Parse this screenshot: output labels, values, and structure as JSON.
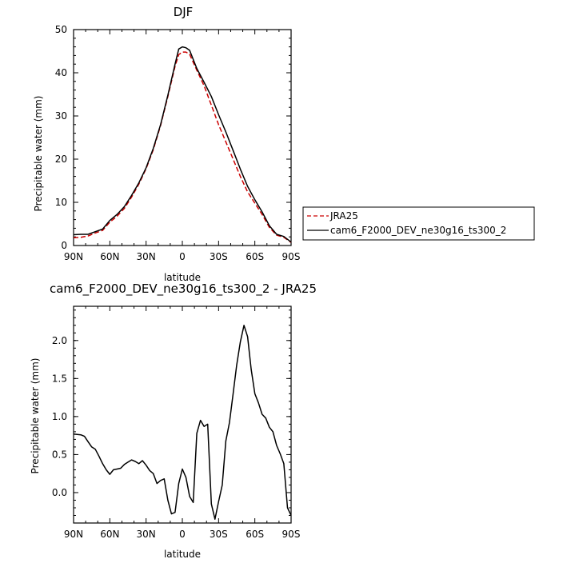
{
  "chart_data": [
    {
      "type": "line",
      "title": "DJF",
      "xlabel": "latitude",
      "ylabel": "Precipitable water (mm)",
      "x_direction": "north-to-south",
      "x_ticks": [
        "90N",
        "60N",
        "30N",
        "0",
        "30S",
        "60S",
        "90S"
      ],
      "y_ticks": [
        "0",
        "10",
        "20",
        "30",
        "40",
        "50"
      ],
      "xlim": [
        90,
        -90
      ],
      "ylim": [
        0,
        50
      ],
      "legend_position": "right",
      "series": [
        {
          "name": "JRA25",
          "color": "#cc0000",
          "dash": "dashed",
          "points": [
            [
              90,
              1.8
            ],
            [
              84,
              1.9
            ],
            [
              78,
              2.2
            ],
            [
              72,
              2.9
            ],
            [
              66,
              3.5
            ],
            [
              60,
              5.4
            ],
            [
              54,
              6.8
            ],
            [
              48,
              8.6
            ],
            [
              42,
              11.2
            ],
            [
              36,
              14.2
            ],
            [
              30,
              17.8
            ],
            [
              24,
              22.2
            ],
            [
              18,
              27.8
            ],
            [
              12,
              34.5
            ],
            [
              6,
              41.5
            ],
            [
              3,
              44.2
            ],
            [
              0,
              44.8
            ],
            [
              -3,
              44.8
            ],
            [
              -6,
              44.3
            ],
            [
              -12,
              40.6
            ],
            [
              -18,
              37.0
            ],
            [
              -24,
              32.5
            ],
            [
              -30,
              28.0
            ],
            [
              -36,
              24.0
            ],
            [
              -42,
              20.0
            ],
            [
              -48,
              16.0
            ],
            [
              -54,
              12.4
            ],
            [
              -60,
              9.8
            ],
            [
              -66,
              7.2
            ],
            [
              -72,
              4.2
            ],
            [
              -78,
              2.4
            ],
            [
              -84,
              1.9
            ],
            [
              -90,
              0.7
            ]
          ]
        },
        {
          "name": "cam6_F2000_DEV_ne30g16_ts300_2",
          "color": "#000000",
          "dash": "solid",
          "points": [
            [
              90,
              2.5
            ],
            [
              84,
              2.6
            ],
            [
              78,
              2.6
            ],
            [
              72,
              3.2
            ],
            [
              66,
              3.8
            ],
            [
              60,
              5.8
            ],
            [
              54,
              7.2
            ],
            [
              48,
              9.0
            ],
            [
              42,
              11.6
            ],
            [
              36,
              14.5
            ],
            [
              30,
              18.0
            ],
            [
              24,
              22.5
            ],
            [
              18,
              28.0
            ],
            [
              12,
              34.8
            ],
            [
              6,
              42.0
            ],
            [
              3,
              45.5
            ],
            [
              0,
              46.0
            ],
            [
              -3,
              45.8
            ],
            [
              -6,
              45.2
            ],
            [
              -12,
              41.0
            ],
            [
              -18,
              37.8
            ],
            [
              -24,
              34.5
            ],
            [
              -30,
              30.3
            ],
            [
              -36,
              26.3
            ],
            [
              -42,
              22.0
            ],
            [
              -48,
              17.7
            ],
            [
              -54,
              13.7
            ],
            [
              -60,
              10.6
            ],
            [
              -66,
              7.8
            ],
            [
              -72,
              4.6
            ],
            [
              -78,
              2.6
            ],
            [
              -84,
              2.1
            ],
            [
              -90,
              0.8
            ]
          ]
        }
      ]
    },
    {
      "type": "line",
      "title": "cam6_F2000_DEV_ne30g16_ts300_2 - JRA25",
      "xlabel": "latitude",
      "ylabel": "Precipitable water (mm)",
      "x_direction": "north-to-south",
      "x_ticks": [
        "90N",
        "60N",
        "30N",
        "0",
        "30S",
        "60S",
        "90S"
      ],
      "y_ticks": [
        "0.0",
        "0.5",
        "1.0",
        "1.5",
        "2.0"
      ],
      "y_tick_values": [
        0,
        0.5,
        1.0,
        1.5,
        2.0
      ],
      "xlim": [
        90,
        -90
      ],
      "ylim": [
        -0.4,
        2.45
      ],
      "series": [
        {
          "name": "",
          "color": "#000000",
          "dash": "solid",
          "points": [
            [
              90,
              0.77
            ],
            [
              84,
              0.76
            ],
            [
              81,
              0.74
            ],
            [
              78,
              0.67
            ],
            [
              75,
              0.6
            ],
            [
              72,
              0.57
            ],
            [
              69,
              0.48
            ],
            [
              66,
              0.38
            ],
            [
              63,
              0.3
            ],
            [
              60,
              0.24
            ],
            [
              57,
              0.3
            ],
            [
              54,
              0.31
            ],
            [
              51,
              0.32
            ],
            [
              48,
              0.37
            ],
            [
              45,
              0.4
            ],
            [
              42,
              0.43
            ],
            [
              39,
              0.41
            ],
            [
              36,
              0.38
            ],
            [
              33,
              0.42
            ],
            [
              30,
              0.36
            ],
            [
              27,
              0.29
            ],
            [
              24,
              0.25
            ],
            [
              21,
              0.12
            ],
            [
              18,
              0.16
            ],
            [
              15,
              0.18
            ],
            [
              12,
              -0.1
            ],
            [
              9,
              -0.28
            ],
            [
              6,
              -0.26
            ],
            [
              3,
              0.12
            ],
            [
              0,
              0.31
            ],
            [
              -3,
              0.2
            ],
            [
              -6,
              -0.05
            ],
            [
              -9,
              -0.13
            ],
            [
              -12,
              0.78
            ],
            [
              -15,
              0.95
            ],
            [
              -18,
              0.87
            ],
            [
              -21,
              0.9
            ],
            [
              -24,
              -0.15
            ],
            [
              -27,
              -0.35
            ],
            [
              -30,
              -0.12
            ],
            [
              -33,
              0.1
            ],
            [
              -36,
              0.68
            ],
            [
              -39,
              0.92
            ],
            [
              -42,
              1.3
            ],
            [
              -45,
              1.68
            ],
            [
              -48,
              1.98
            ],
            [
              -51,
              2.2
            ],
            [
              -54,
              2.05
            ],
            [
              -57,
              1.62
            ],
            [
              -60,
              1.3
            ],
            [
              -63,
              1.18
            ],
            [
              -66,
              1.03
            ],
            [
              -69,
              0.98
            ],
            [
              -72,
              0.86
            ],
            [
              -75,
              0.8
            ],
            [
              -78,
              0.62
            ],
            [
              -81,
              0.51
            ],
            [
              -84,
              0.38
            ],
            [
              -87,
              -0.2
            ],
            [
              -90,
              -0.3
            ]
          ]
        }
      ]
    }
  ]
}
